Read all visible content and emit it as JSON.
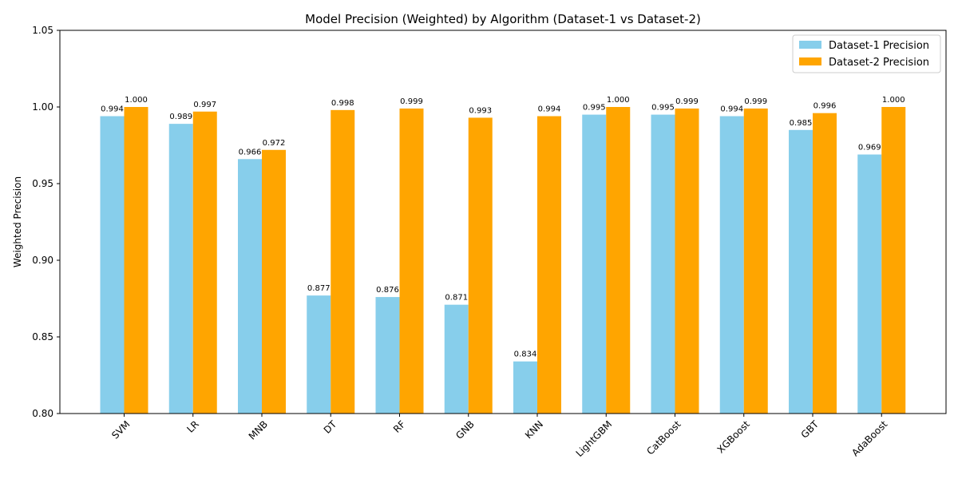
{
  "chart_data": {
    "type": "bar",
    "title": "Model Precision (Weighted) by Algorithm (Dataset-1 vs Dataset-2)",
    "xlabel": "",
    "ylabel": "Weighted Precision",
    "ylim": [
      0.8,
      1.05
    ],
    "yticks": [
      0.8,
      0.85,
      0.9,
      0.95,
      1.0,
      1.05
    ],
    "categories": [
      "SVM",
      "LR",
      "MNB",
      "DT",
      "RF",
      "GNB",
      "KNN",
      "LightGBM",
      "CatBoost",
      "XGBoost",
      "GBT",
      "AdaBoost"
    ],
    "series": [
      {
        "name": "Dataset-1 Precision",
        "color": "#87CEEB",
        "values": [
          0.994,
          0.989,
          0.966,
          0.877,
          0.876,
          0.871,
          0.834,
          0.995,
          0.995,
          0.994,
          0.985,
          0.969
        ],
        "labels": [
          "0.994",
          "0.989",
          "0.966",
          "0.877",
          "0.876",
          "0.871",
          "0.834",
          "0.995",
          "0.995",
          "0.994",
          "0.985",
          "0.969"
        ]
      },
      {
        "name": "Dataset-2 Precision",
        "color": "#FFA500",
        "values": [
          1.0,
          0.997,
          0.972,
          0.998,
          0.999,
          0.993,
          0.994,
          1.0,
          0.999,
          0.999,
          0.996,
          1.0
        ],
        "labels": [
          "1.000",
          "0.997",
          "0.972",
          "0.998",
          "0.999",
          "0.993",
          "0.994",
          "1.000",
          "0.999",
          "0.999",
          "0.996",
          "1.000"
        ]
      }
    ],
    "legend": {
      "placement": "top-right"
    },
    "grid": false
  }
}
